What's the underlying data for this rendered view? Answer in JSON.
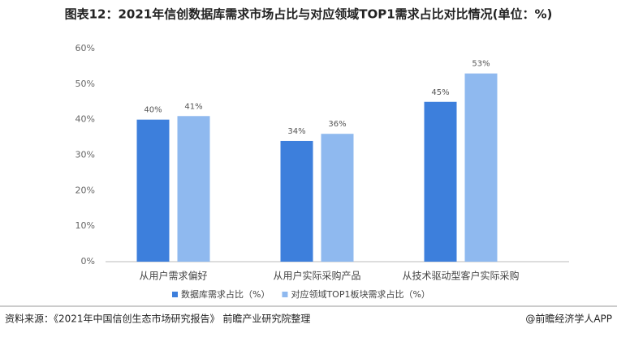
{
  "chart_data": {
    "type": "bar",
    "title": "图表12：2021年信创数据库需求市场占比与对应领域TOP1需求占比对比情况(单位：%)",
    "categories": [
      "从用户需求偏好",
      "从用户实际采购产品",
      "从技术驱动型客户实际采购"
    ],
    "series": [
      {
        "name": "数据库需求占比（%）",
        "color": "#3d7fdc",
        "values": [
          40,
          34,
          45
        ],
        "value_labels": [
          "40%",
          "34%",
          "45%"
        ]
      },
      {
        "name": "对应领域TOP1板块需求占比（%）",
        "color": "#8fb9ef",
        "values": [
          41,
          36,
          53
        ],
        "value_labels": [
          "41%",
          "36%",
          "53%"
        ]
      }
    ],
    "ylim": [
      0,
      60
    ],
    "yticks": [
      {
        "value": 0,
        "label": "0%"
      },
      {
        "value": 10,
        "label": "10%"
      },
      {
        "value": 20,
        "label": "20%"
      },
      {
        "value": 30,
        "label": "30%"
      },
      {
        "value": 40,
        "label": "40%"
      },
      {
        "value": 50,
        "label": "50%"
      },
      {
        "value": 60,
        "label": "60%"
      }
    ],
    "grid": false,
    "legend": "bottom",
    "source": "资料来源：《2021年中国信创生态市场研究报告》 前瞻产业研究院整理",
    "credit": "@前瞻经济学人APP"
  }
}
